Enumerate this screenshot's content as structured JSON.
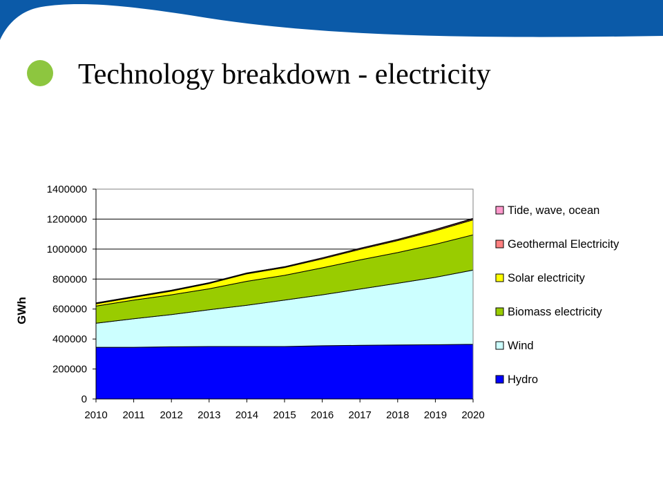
{
  "slide": {
    "title": "Technology breakdown - electricity",
    "accent_color": "#0b5aa8",
    "bullet_color": "#8dc63f"
  },
  "chart_data": {
    "type": "area",
    "stacked": true,
    "title": "",
    "xlabel": "",
    "ylabel": "GWh",
    "x": [
      2010,
      2011,
      2012,
      2013,
      2014,
      2015,
      2016,
      2017,
      2018,
      2019,
      2020
    ],
    "ylim": [
      0,
      1400000
    ],
    "yticks": [
      0,
      200000,
      400000,
      600000,
      800000,
      1000000,
      1200000,
      1400000
    ],
    "grid": true,
    "legend_position": "right",
    "series": [
      {
        "name": "Hydro",
        "color": "#0000ff",
        "values": [
          345000,
          345000,
          348000,
          350000,
          350000,
          350000,
          355000,
          358000,
          360000,
          362000,
          365000
        ]
      },
      {
        "name": "Wind",
        "color": "#ccffff",
        "values": [
          160000,
          190000,
          215000,
          245000,
          275000,
          310000,
          340000,
          375000,
          412000,
          450000,
          495000
        ]
      },
      {
        "name": "Biomass electricity",
        "color": "#99cc00",
        "values": [
          115000,
          125000,
          132000,
          140000,
          160000,
          165000,
          180000,
          195000,
          205000,
          220000,
          235000
        ]
      },
      {
        "name": "Solar electricity",
        "color": "#ffff00",
        "values": [
          15000,
          18000,
          25000,
          35000,
          50000,
          52000,
          60000,
          70000,
          80000,
          90000,
          100000
        ]
      },
      {
        "name": "Geothermal Electricity",
        "color": "#ff8080",
        "values": [
          5000,
          5000,
          5000,
          5000,
          5000,
          5000,
          6000,
          6000,
          6000,
          7000,
          7000
        ]
      },
      {
        "name": "Tide, wave, ocean",
        "color": "#ff99cc",
        "values": [
          1000,
          1000,
          1000,
          1000,
          1000,
          1000,
          1000,
          2000,
          2000,
          2000,
          3000
        ]
      }
    ]
  }
}
